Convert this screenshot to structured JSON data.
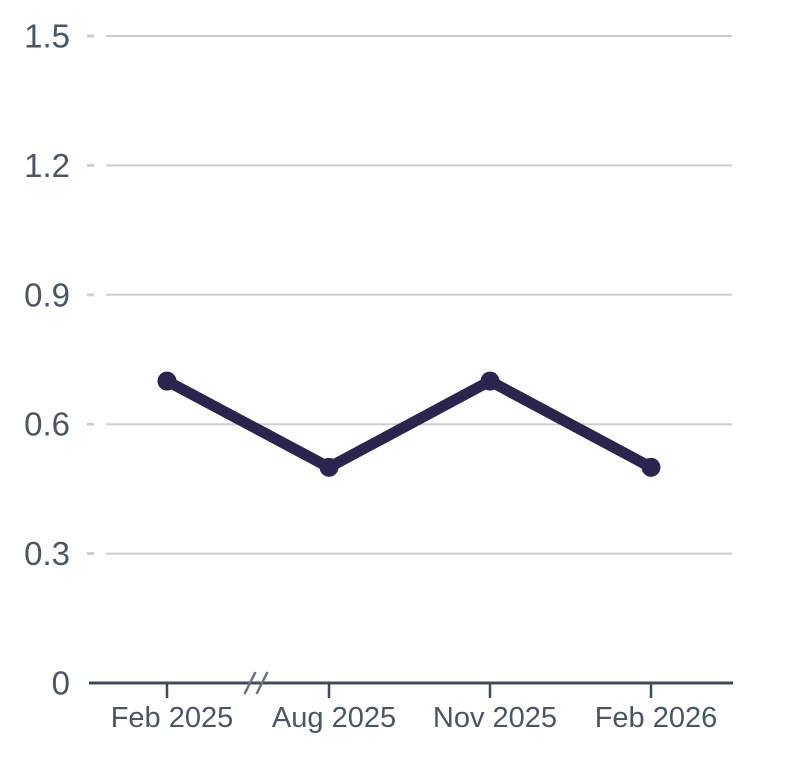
{
  "chart_data": {
    "type": "line",
    "title": "",
    "categories": [
      "Feb 2025",
      "Aug 2025",
      "Nov 2025",
      "Feb 2026"
    ],
    "series": [
      {
        "name": "value",
        "values": [
          0.7,
          0.5,
          0.7,
          0.5
        ]
      }
    ],
    "xlabel": "",
    "ylabel": "",
    "ylim": [
      0,
      1.5
    ],
    "yticks": [
      0,
      0.3,
      0.6,
      0.9,
      1.2,
      1.5
    ],
    "ytick_labels": [
      "0",
      "0.3",
      "0.6",
      "0.9",
      "1.2",
      "1.5"
    ],
    "grid": true,
    "legend": false,
    "axis_break": {
      "present": true,
      "after_category_index": 0,
      "symbol": "//"
    }
  },
  "colors": {
    "background": "#ffffff",
    "line": "#2b254d",
    "point": "#2b254d",
    "gridline": "#cecece",
    "axis": "#3f4b59",
    "tick_label": "#4a5662",
    "axis_break": "#6b747e"
  }
}
